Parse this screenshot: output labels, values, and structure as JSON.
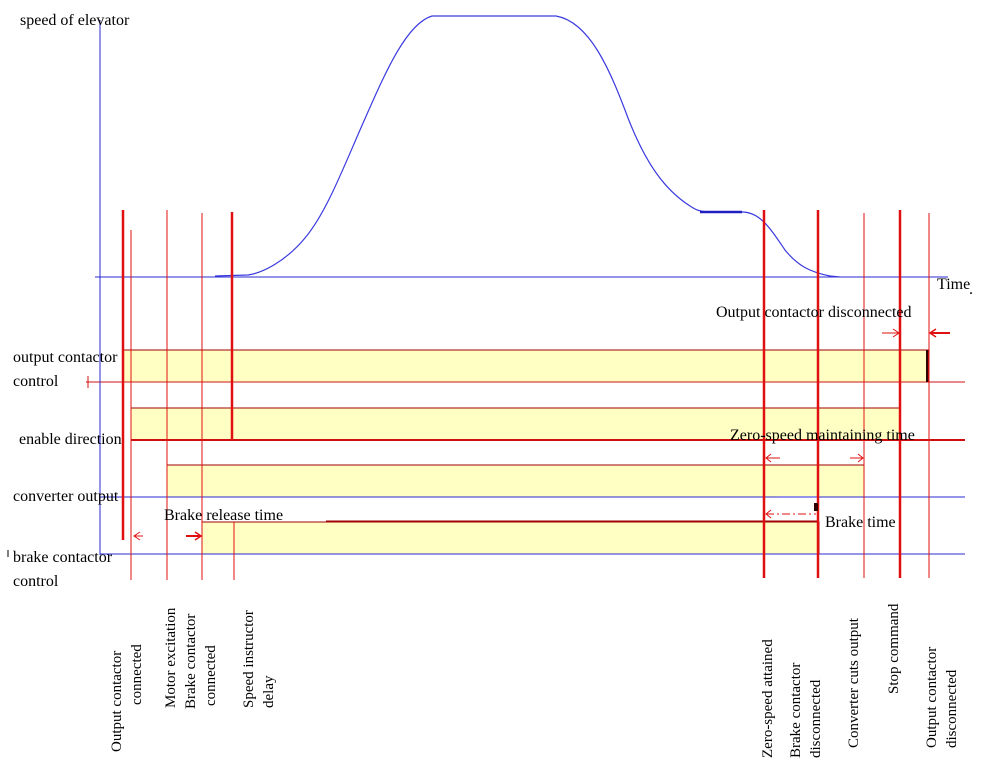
{
  "labels": {
    "speed_axis": "speed of elevator",
    "time_axis": "Time",
    "output_contactor_control_1": "output contactor",
    "output_contactor_control_2": "control",
    "enable_direction": "enable direction",
    "converter_output": "converter output",
    "brake_contactor_control_1": "brake contactor",
    "brake_contactor_control_2": "control"
  },
  "annotations": {
    "output_contactor_disconnected": "Output contactor disconnected",
    "zero_speed_maintaining_time": "Zero-speed maintaining time",
    "brake_release_time": "Brake release time",
    "brake_time": "Brake time"
  },
  "events": {
    "output_contactor_connected_1": "Output contactor",
    "output_contactor_connected_2": "connected",
    "motor_excitation": "Motor excitation",
    "brake_contactor_connected_1": "Brake contactor",
    "brake_contactor_connected_2": "connected",
    "speed_instructor_delay_1": "Speed instructor",
    "speed_instructor_delay_2": "delay",
    "zero_speed_attained": "Zero-speed attained",
    "brake_contactor_disconnected_1": "Brake contactor",
    "brake_contactor_disconnected_2": "disconnected",
    "converter_cuts_output": "Converter cuts output",
    "stop_command": "Stop command",
    "output_contactor_disconnected_1": "Output contactor",
    "output_contactor_disconnected_2": "disconnected"
  },
  "colors": {
    "curve": "#3a3adf",
    "axis": "#2a2ad0",
    "event_line": "#e01010",
    "band_fill": "#ffffc4",
    "band_border": "#a00000"
  }
}
